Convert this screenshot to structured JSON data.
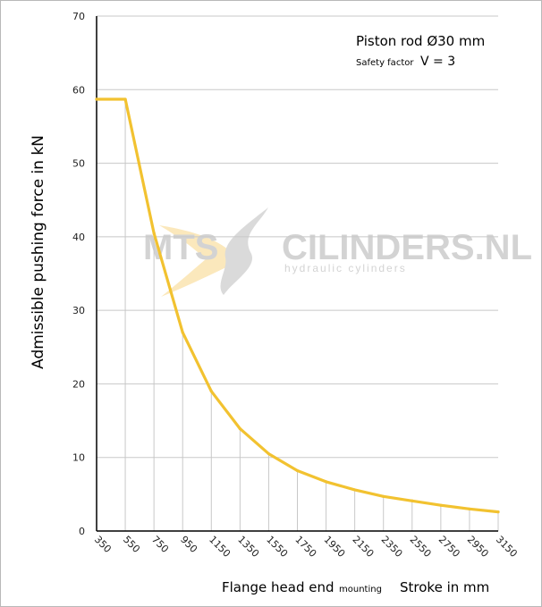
{
  "chart_data": {
    "type": "line",
    "x": [
      350,
      550,
      750,
      950,
      1150,
      1350,
      1550,
      1750,
      1950,
      2150,
      2350,
      2550,
      2750,
      2950,
      3150
    ],
    "x_ticks": [
      "350",
      "550",
      "750",
      "950",
      "1150",
      "1350",
      "1550",
      "1750",
      "1950",
      "2150",
      "2350",
      "2550",
      "2750",
      "2950",
      "3150"
    ],
    "series": [
      {
        "x": [
          350,
          550,
          750,
          950,
          1150,
          1350,
          1550,
          1750,
          1950,
          2150,
          2350,
          2550,
          2750,
          2950,
          3150
        ],
        "values": [
          58.7,
          58.7,
          40.5,
          27.0,
          19.0,
          13.9,
          10.5,
          8.2,
          6.7,
          5.6,
          4.7,
          4.1,
          3.5,
          3.0,
          2.6
        ]
      }
    ],
    "ylim": [
      0,
      70
    ],
    "y_ticks": [
      "0",
      "10",
      "20",
      "30",
      "40",
      "50",
      "60",
      "70"
    ],
    "ylabel": "Admissible  pushing  force in kN",
    "xlabel_main": "Flange head end",
    "xlabel_small": "mounting",
    "xlabel_right": "Stroke in mm",
    "annotation_title": "Piston rod Ø30 mm",
    "annotation_sub_small": "Safety factor",
    "annotation_sub_big": "V = 3",
    "grid": "horizontal at y ticks, vertical drop lines at x ticks",
    "line_color": "#f2c230",
    "grid_color": "#c8c8c8"
  },
  "watermark": {
    "brand_left": "MTS",
    "brand_right": "CILINDERS.NL",
    "tagline": "hydraulic  cylinders"
  }
}
